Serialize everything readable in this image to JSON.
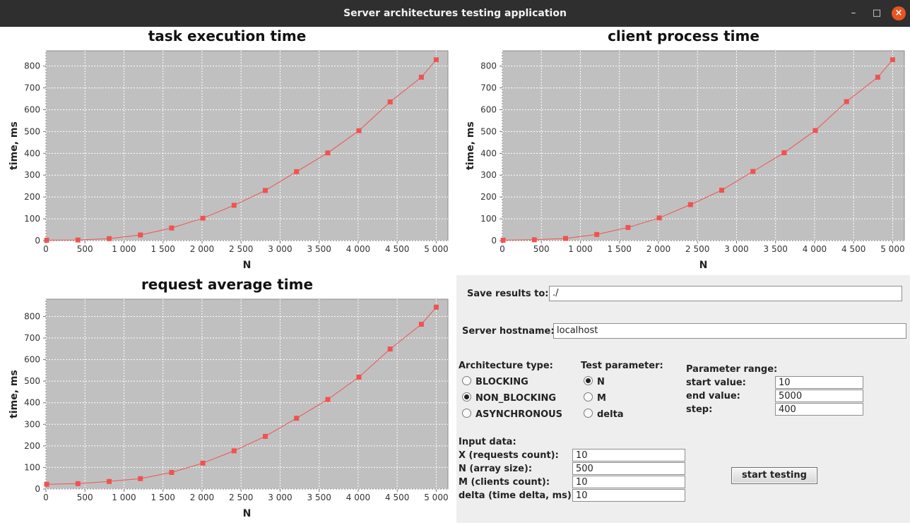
{
  "window": {
    "title": "Server architectures testing application",
    "buttons": {
      "minimize": "–",
      "maximize": "□",
      "close": "×"
    }
  },
  "colors": {
    "plot_bg": "#c0c0c0",
    "series": "#f05252",
    "grid": "#ffffff"
  },
  "chart_data": [
    {
      "type": "line",
      "title": "task execution time",
      "xlabel": "N",
      "ylabel": "time, ms",
      "xlim": [
        0,
        5150
      ],
      "ylim": [
        0,
        870
      ],
      "xticks": [
        0,
        500,
        1000,
        1500,
        2000,
        2500,
        3000,
        3500,
        4000,
        4500,
        5000
      ],
      "yticks": [
        0,
        100,
        200,
        300,
        400,
        500,
        600,
        700,
        800
      ],
      "tick_labels_x": [
        "0",
        "500",
        "1 000",
        "1 500",
        "2 000",
        "2 500",
        "3 000",
        "3 500",
        "4 000",
        "4 500",
        "5 000"
      ],
      "tick_labels_y": [
        "0",
        "100",
        "200",
        "300",
        "400",
        "500",
        "600",
        "700",
        "800"
      ],
      "grid": true,
      "x": [
        10,
        410,
        810,
        1210,
        1610,
        2010,
        2410,
        2810,
        3210,
        3610,
        4010,
        4410,
        4810,
        5000
      ],
      "series": [
        {
          "values": [
            2,
            3,
            9,
            26,
            58,
            103,
            162,
            230,
            316,
            402,
            504,
            636,
            749,
            829
          ]
        }
      ]
    },
    {
      "type": "line",
      "title": "client process time",
      "xlabel": "N",
      "ylabel": "time, ms",
      "xlim": [
        0,
        5150
      ],
      "ylim": [
        0,
        870
      ],
      "xticks": [
        0,
        500,
        1000,
        1500,
        2000,
        2500,
        3000,
        3500,
        4000,
        4500,
        5000
      ],
      "yticks": [
        0,
        100,
        200,
        300,
        400,
        500,
        600,
        700,
        800
      ],
      "tick_labels_x": [
        "0",
        "500",
        "1 000",
        "1 500",
        "2 000",
        "2 500",
        "3 000",
        "3 500",
        "4 000",
        "4 500",
        "5 000"
      ],
      "tick_labels_y": [
        "0",
        "100",
        "200",
        "300",
        "400",
        "500",
        "600",
        "700",
        "800"
      ],
      "grid": true,
      "x": [
        10,
        410,
        810,
        1210,
        1610,
        2010,
        2410,
        2810,
        3210,
        3610,
        4010,
        4410,
        4810,
        5000
      ],
      "series": [
        {
          "values": [
            2,
            4,
            10,
            28,
            60,
            104,
            165,
            231,
            317,
            403,
            505,
            637,
            749,
            829
          ]
        }
      ]
    },
    {
      "type": "line",
      "title": "request average time",
      "xlabel": "N",
      "ylabel": "time, ms",
      "xlim": [
        0,
        5150
      ],
      "ylim": [
        0,
        880
      ],
      "xticks": [
        0,
        500,
        1000,
        1500,
        2000,
        2500,
        3000,
        3500,
        4000,
        4500,
        5000
      ],
      "yticks": [
        0,
        100,
        200,
        300,
        400,
        500,
        600,
        700,
        800
      ],
      "tick_labels_x": [
        "0",
        "500",
        "1 000",
        "1 500",
        "2 000",
        "2 500",
        "3 000",
        "3 500",
        "4 000",
        "4 500",
        "5 000"
      ],
      "tick_labels_y": [
        "0",
        "100",
        "200",
        "300",
        "400",
        "500",
        "600",
        "700",
        "800"
      ],
      "grid": true,
      "x": [
        10,
        410,
        810,
        1210,
        1610,
        2010,
        2410,
        2810,
        3210,
        3610,
        4010,
        4410,
        4810,
        5000
      ],
      "series": [
        {
          "values": [
            22,
            25,
            35,
            48,
            77,
            120,
            177,
            244,
            328,
            415,
            519,
            649,
            764,
            843
          ]
        }
      ]
    }
  ],
  "form": {
    "save_label": "Save results to:",
    "save_value": "./",
    "host_label": "Server hostname:",
    "host_value": "localhost",
    "arch_label": "Architecture type:",
    "arch_options": [
      "BLOCKING",
      "NON_BLOCKING",
      "ASYNCHRONOUS"
    ],
    "arch_selected": "NON_BLOCKING",
    "param_label": "Test parameter:",
    "param_options": [
      "N",
      "M",
      "delta"
    ],
    "param_selected": "N",
    "range_label": "Parameter range:",
    "start_label": "start value:",
    "start_value": "10",
    "end_label": "end value:",
    "end_value": "5000",
    "step_label": "step:",
    "step_value": "400",
    "input_label": "Input data:",
    "x_label": "X (requests count):",
    "x_value": "10",
    "n_label": "N (array size):",
    "n_value": "500",
    "m_label": "M (clients count):",
    "m_value": "10",
    "delta_label": "delta (time delta, ms):",
    "delta_value": "10",
    "start_button": "start testing"
  }
}
